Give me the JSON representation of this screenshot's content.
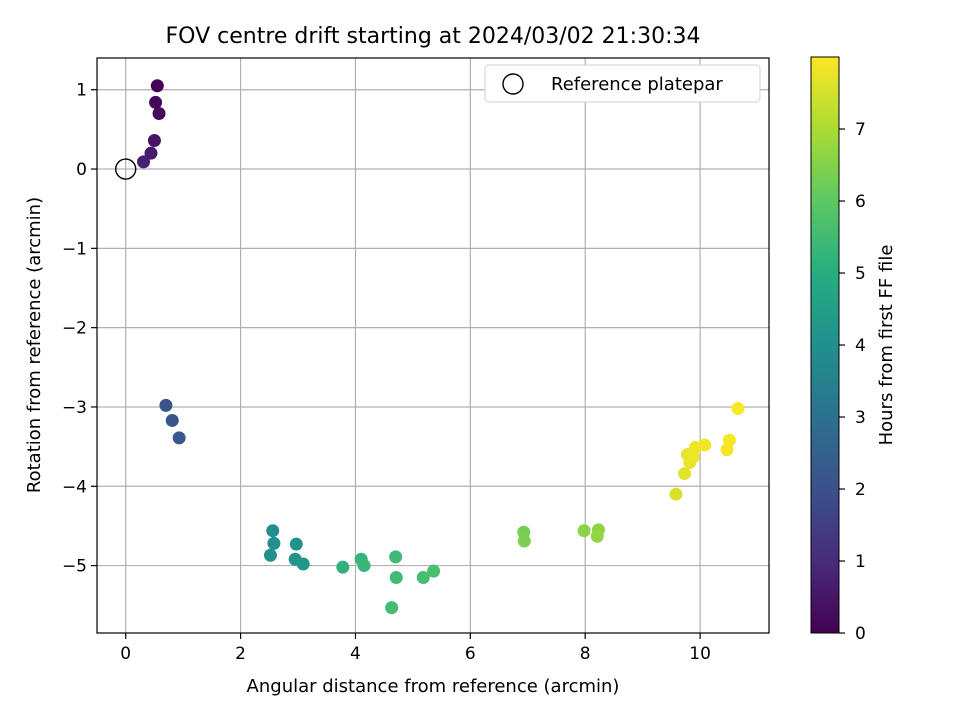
{
  "chart_data": {
    "type": "scatter",
    "title": "FOV centre drift starting at 2024/03/02 21:30:34",
    "xlabel": "Angular distance from reference (arcmin)",
    "ylabel": "Rotation from reference (arcmin)",
    "xlim": [
      -0.5,
      11.2
    ],
    "ylim": [
      -5.85,
      1.4
    ],
    "xticks": [
      0,
      2,
      4,
      6,
      8,
      10
    ],
    "yticks": [
      1,
      0,
      -1,
      -2,
      -3,
      -4,
      -5
    ],
    "xtick_labels": [
      "0",
      "2",
      "4",
      "6",
      "8",
      "10"
    ],
    "ytick_labels": [
      "1",
      "0",
      "−1",
      "−2",
      "−3",
      "−4",
      "−5"
    ],
    "grid": true,
    "legend": {
      "placement": "top-right",
      "entries": [
        "Reference platepar"
      ]
    },
    "reference_point": {
      "x": 0,
      "y": 0
    },
    "colorbar": {
      "label": "Hours from first FF file",
      "range": [
        0,
        8.0
      ],
      "ticks": [
        0,
        1,
        2,
        3,
        4,
        5,
        6,
        7
      ],
      "tick_labels": [
        "0",
        "1",
        "2",
        "3",
        "4",
        "5",
        "6",
        "7"
      ],
      "colormap": "viridis"
    },
    "points": [
      {
        "x": 0.55,
        "y": 1.05,
        "t": 0.05
      },
      {
        "x": 0.52,
        "y": 0.84,
        "t": 0.15
      },
      {
        "x": 0.58,
        "y": 0.7,
        "t": 0.25
      },
      {
        "x": 0.5,
        "y": 0.36,
        "t": 0.45
      },
      {
        "x": 0.44,
        "y": 0.2,
        "t": 0.6
      },
      {
        "x": 0.31,
        "y": 0.09,
        "t": 0.75
      },
      {
        "x": 0.7,
        "y": -2.98,
        "t": 2.05
      },
      {
        "x": 0.81,
        "y": -3.17,
        "t": 2.15
      },
      {
        "x": 0.93,
        "y": -3.39,
        "t": 2.25
      },
      {
        "x": 2.56,
        "y": -4.56,
        "t": 3.95
      },
      {
        "x": 2.58,
        "y": -4.72,
        "t": 4.0
      },
      {
        "x": 2.52,
        "y": -4.87,
        "t": 4.05
      },
      {
        "x": 2.97,
        "y": -4.73,
        "t": 4.1
      },
      {
        "x": 2.95,
        "y": -4.92,
        "t": 4.15
      },
      {
        "x": 3.09,
        "y": -4.98,
        "t": 4.2
      },
      {
        "x": 3.78,
        "y": -5.02,
        "t": 5.2
      },
      {
        "x": 4.1,
        "y": -4.92,
        "t": 5.3
      },
      {
        "x": 4.15,
        "y": -5.0,
        "t": 5.35
      },
      {
        "x": 4.7,
        "y": -4.89,
        "t": 5.45
      },
      {
        "x": 4.71,
        "y": -5.15,
        "t": 5.5
      },
      {
        "x": 4.63,
        "y": -5.53,
        "t": 5.55
      },
      {
        "x": 5.18,
        "y": -5.15,
        "t": 5.6
      },
      {
        "x": 5.36,
        "y": -5.07,
        "t": 5.65
      },
      {
        "x": 6.93,
        "y": -4.58,
        "t": 6.35
      },
      {
        "x": 6.94,
        "y": -4.69,
        "t": 6.4
      },
      {
        "x": 7.98,
        "y": -4.56,
        "t": 6.6
      },
      {
        "x": 8.23,
        "y": -4.55,
        "t": 6.65
      },
      {
        "x": 8.21,
        "y": -4.63,
        "t": 6.7
      },
      {
        "x": 9.58,
        "y": -4.1,
        "t": 7.55
      },
      {
        "x": 9.73,
        "y": -3.84,
        "t": 7.65
      },
      {
        "x": 9.78,
        "y": -3.6,
        "t": 7.72
      },
      {
        "x": 9.82,
        "y": -3.7,
        "t": 7.75
      },
      {
        "x": 9.88,
        "y": -3.63,
        "t": 7.8
      },
      {
        "x": 9.92,
        "y": -3.51,
        "t": 7.82
      },
      {
        "x": 10.08,
        "y": -3.48,
        "t": 7.85
      },
      {
        "x": 10.47,
        "y": -3.54,
        "t": 7.9
      },
      {
        "x": 10.51,
        "y": -3.42,
        "t": 7.92
      },
      {
        "x": 10.66,
        "y": -3.02,
        "t": 7.96
      }
    ]
  }
}
